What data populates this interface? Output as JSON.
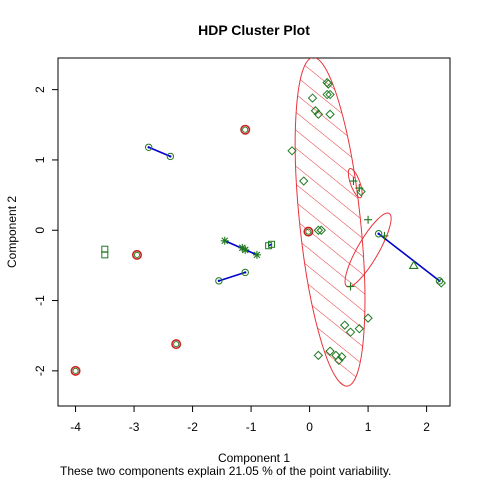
{
  "chart_data": {
    "type": "scatter",
    "title": "HDP Cluster Plot",
    "xlabel": "Component 1",
    "ylabel": "Component 2",
    "subtitle": "These two components explain 21.05 % of the point variability.",
    "xlim": [
      -4.3,
      2.4
    ],
    "ylim": [
      -2.5,
      2.45
    ],
    "x_ticks": [
      -4,
      -3,
      -2,
      -1,
      0,
      1,
      2
    ],
    "y_ticks": [
      -2,
      -1,
      0,
      1,
      2
    ],
    "colors": {
      "ellipse": "#e8333a",
      "hatch": "#e8333a",
      "segment": "#0000cc",
      "point": "#1f7a1f",
      "point_alt": "#4d4d4d",
      "red_fill": "#cc2222"
    },
    "points": [
      {
        "x": -4.0,
        "y": -2.0,
        "shape": "circle-red"
      },
      {
        "x": -3.5,
        "y": -0.27,
        "shape": "square"
      },
      {
        "x": -3.5,
        "y": -0.35,
        "shape": "square"
      },
      {
        "x": -2.95,
        "y": -0.35,
        "shape": "circle-red"
      },
      {
        "x": -2.75,
        "y": 1.18,
        "shape": "circle"
      },
      {
        "x": -2.38,
        "y": 1.05,
        "shape": "circle"
      },
      {
        "x": -2.28,
        "y": -1.62,
        "shape": "circle-red"
      },
      {
        "x": -1.55,
        "y": -0.72,
        "shape": "circle"
      },
      {
        "x": -1.1,
        "y": -0.6,
        "shape": "circle"
      },
      {
        "x": -1.1,
        "y": 1.43,
        "shape": "circle-red"
      },
      {
        "x": -1.45,
        "y": -0.15,
        "shape": "star"
      },
      {
        "x": -1.15,
        "y": -0.25,
        "shape": "star"
      },
      {
        "x": -1.1,
        "y": -0.28,
        "shape": "star"
      },
      {
        "x": -0.9,
        "y": -0.35,
        "shape": "star"
      },
      {
        "x": -0.7,
        "y": -0.22,
        "shape": "square"
      },
      {
        "x": -0.65,
        "y": -0.2,
        "shape": "square"
      },
      {
        "x": -0.02,
        "y": -0.02,
        "shape": "circle-red"
      },
      {
        "x": 0.15,
        "y": 0.0,
        "shape": "diamond"
      },
      {
        "x": 0.2,
        "y": 0.0,
        "shape": "diamond"
      },
      {
        "x": 0.3,
        "y": 2.1,
        "shape": "diamond"
      },
      {
        "x": 0.32,
        "y": 2.08,
        "shape": "diamond"
      },
      {
        "x": 0.05,
        "y": 1.88,
        "shape": "diamond"
      },
      {
        "x": 0.3,
        "y": 1.93,
        "shape": "diamond"
      },
      {
        "x": 0.35,
        "y": 1.93,
        "shape": "diamond"
      },
      {
        "x": 0.1,
        "y": 1.7,
        "shape": "diamond"
      },
      {
        "x": 0.15,
        "y": 1.65,
        "shape": "diamond"
      },
      {
        "x": 0.35,
        "y": 1.65,
        "shape": "diamond"
      },
      {
        "x": -0.3,
        "y": 1.13,
        "shape": "diamond"
      },
      {
        "x": -0.1,
        "y": 0.7,
        "shape": "diamond"
      },
      {
        "x": 0.75,
        "y": 0.7,
        "shape": "plus"
      },
      {
        "x": 0.85,
        "y": 0.6,
        "shape": "plus"
      },
      {
        "x": 0.88,
        "y": 0.55,
        "shape": "diamond"
      },
      {
        "x": 1.0,
        "y": 0.15,
        "shape": "plus"
      },
      {
        "x": 0.7,
        "y": -0.8,
        "shape": "plus"
      },
      {
        "x": 1.18,
        "y": -0.05,
        "shape": "circle"
      },
      {
        "x": 1.28,
        "y": -0.08,
        "shape": "plus"
      },
      {
        "x": 1.78,
        "y": -0.5,
        "shape": "triangle"
      },
      {
        "x": 2.22,
        "y": -0.72,
        "shape": "circle"
      },
      {
        "x": 2.25,
        "y": -0.75,
        "shape": "diamond"
      },
      {
        "x": 1.0,
        "y": -1.25,
        "shape": "diamond"
      },
      {
        "x": 0.6,
        "y": -1.35,
        "shape": "diamond"
      },
      {
        "x": 0.85,
        "y": -1.4,
        "shape": "diamond"
      },
      {
        "x": 0.7,
        "y": -1.45,
        "shape": "diamond"
      },
      {
        "x": 0.15,
        "y": -1.78,
        "shape": "diamond"
      },
      {
        "x": 0.35,
        "y": -1.72,
        "shape": "diamond"
      },
      {
        "x": 0.45,
        "y": -1.78,
        "shape": "diamond"
      },
      {
        "x": 0.5,
        "y": -1.85,
        "shape": "diamond"
      },
      {
        "x": 0.55,
        "y": -1.8,
        "shape": "diamond"
      }
    ],
    "segments": [
      {
        "x1": -2.75,
        "y1": 1.18,
        "x2": -2.38,
        "y2": 1.05
      },
      {
        "x1": -1.55,
        "y1": -0.72,
        "x2": -1.1,
        "y2": -0.6
      },
      {
        "x1": -1.45,
        "y1": -0.15,
        "x2": -0.9,
        "y2": -0.35
      },
      {
        "x1": 1.18,
        "y1": -0.05,
        "x2": 2.22,
        "y2": -0.72
      },
      {
        "x1": -0.7,
        "y1": -0.22,
        "x2": -0.65,
        "y2": -0.2
      }
    ],
    "ellipses": [
      {
        "cx": 0.35,
        "cy": 0.12,
        "rx": 0.52,
        "ry": 2.35,
        "angle": -6,
        "hatched": true
      },
      {
        "cx": 0.78,
        "cy": 0.67,
        "rx": 0.08,
        "ry": 0.22,
        "angle": -20,
        "hatched": false
      },
      {
        "cx": 1.0,
        "cy": -0.28,
        "rx": 0.18,
        "ry": 0.6,
        "angle": 30,
        "hatched": false
      }
    ]
  }
}
